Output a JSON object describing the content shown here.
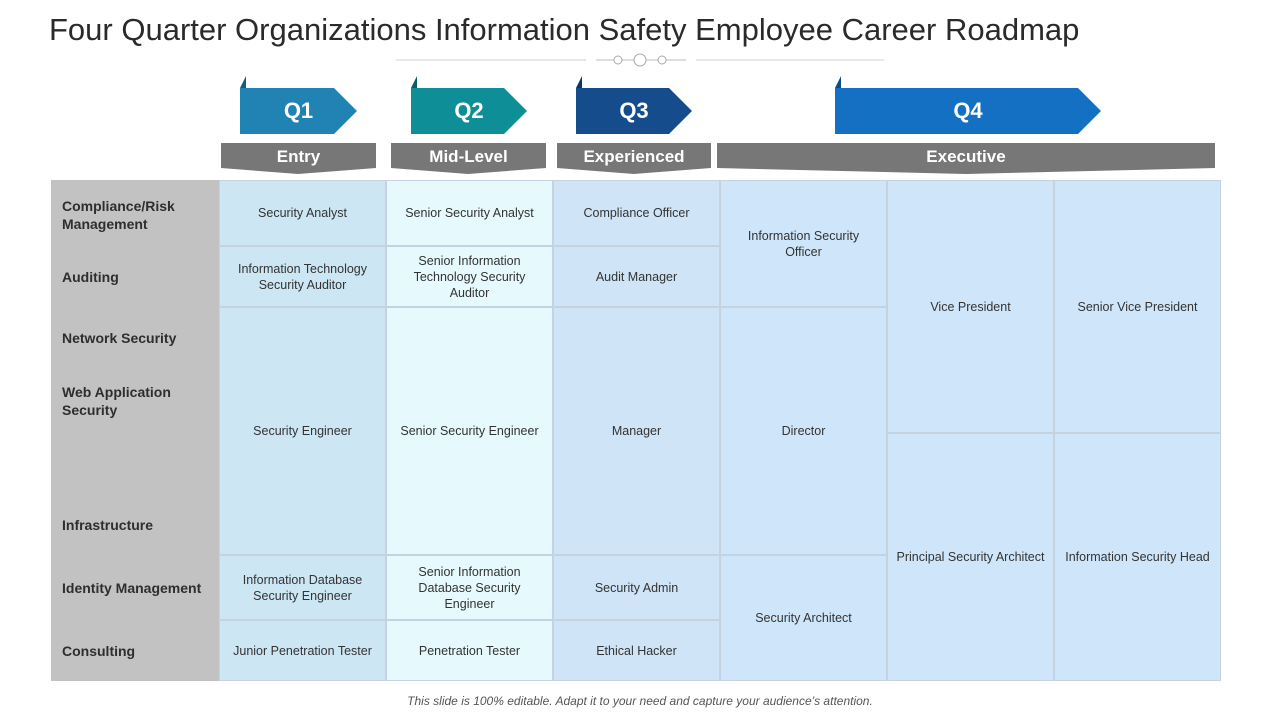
{
  "title": "Four Quarter Organizations Information Safety Employee Career Roadmap",
  "quarters": [
    "Q1",
    "Q2",
    "Q3",
    "Q4"
  ],
  "phases": [
    "Entry",
    "Mid-Level",
    "Experienced",
    "Executive"
  ],
  "row_labels": {
    "compliance": "Compliance/Risk Management",
    "auditing": "Auditing",
    "network": "Network Security",
    "webapp": "Web Application Security",
    "infra": "Infrastructure",
    "identity": "Identity Management",
    "consulting": "Consulting"
  },
  "cells": {
    "security_analyst": "Security Analyst",
    "senior_security_analyst": "Senior Security Analyst",
    "compliance_officer": "Compliance Officer",
    "info_security_officer": "Information Security Officer",
    "vice_president": "Vice President",
    "senior_vice_president": "Senior Vice President",
    "it_security_auditor": "Information Technology Security Auditor",
    "senior_it_security_auditor": "Senior Information Technology Security Auditor",
    "audit_manager": "Audit Manager",
    "security_engineer": "Security Engineer",
    "senior_security_engineer": "Senior Security Engineer",
    "manager": "Manager",
    "director": "Director",
    "principal_security_architect": "Principal Security Architect",
    "info_security_head": "Information Security Head",
    "db_security_engineer": "Information Database Security Engineer",
    "senior_db_security_engineer": "Senior Information Database Security Engineer",
    "security_admin": "Security Admin",
    "security_architect": "Security Architect",
    "junior_pen_tester": "Junior Penetration Tester",
    "pen_tester": "Penetration Tester",
    "ethical_hacker": "Ethical Hacker"
  },
  "footer": "This slide is 100% editable. Adapt it to your need and capture your audience’s attention.",
  "colors": {
    "q1": "#2183b4",
    "q2": "#0e8f98",
    "q3": "#154d8c",
    "q4": "#1370c2",
    "phase_band": "#777777",
    "row_header": "#c2c2c2"
  }
}
